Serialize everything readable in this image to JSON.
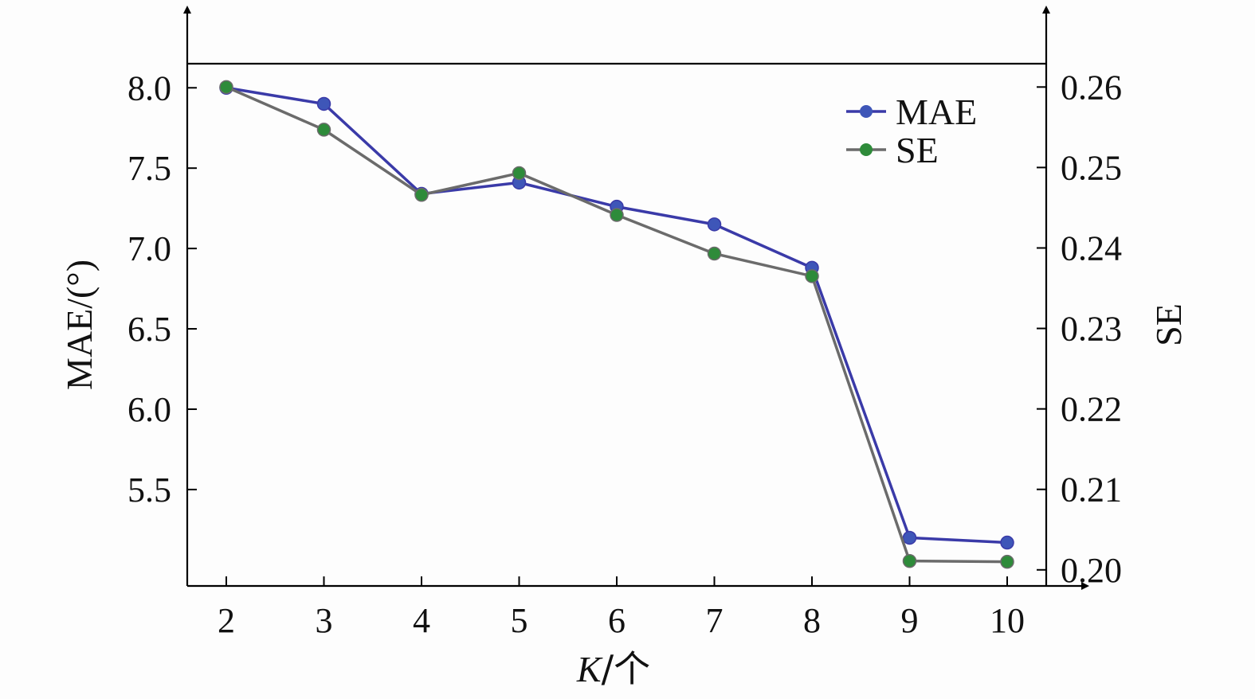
{
  "chart_data": {
    "type": "line",
    "x": [
      2,
      3,
      4,
      5,
      6,
      7,
      8,
      9,
      10
    ],
    "xlabel": {
      "italic": "K",
      "rest": "/个"
    },
    "ylabel_left": "MAE/(°)",
    "ylabel_right": "SE",
    "ylim_left": [
      4.9,
      8.15
    ],
    "ylim_right": [
      0.198,
      0.2629
    ],
    "xlim": [
      1.6,
      10.4
    ],
    "x_ticks": [
      "2",
      "3",
      "4",
      "5",
      "6",
      "7",
      "8",
      "9",
      "10"
    ],
    "y_ticks_left": [
      "5.5",
      "6.0",
      "6.5",
      "7.0",
      "7.5",
      "8.0"
    ],
    "y_ticks_right": [
      "0.20",
      "0.21",
      "0.22",
      "0.23",
      "0.24",
      "0.25",
      "0.26"
    ],
    "grid": false,
    "legend_position": "top-right",
    "series": [
      {
        "name": "MAE",
        "axis": "left",
        "color": "#3a3aa8",
        "line_color": "#3a3aa8",
        "marker_color": "#3e56b8",
        "values": [
          8.0,
          7.9,
          7.34,
          7.41,
          7.26,
          7.15,
          6.88,
          5.2,
          5.17
        ]
      },
      {
        "name": "SE",
        "axis": "right",
        "color": "#2e8b3a",
        "line_color": "#6b6b6b",
        "marker_color": "#2e8b3a",
        "values": [
          0.26,
          0.2547,
          0.2466,
          0.2493,
          0.2441,
          0.2393,
          0.2365,
          0.2011,
          0.201
        ]
      }
    ]
  }
}
